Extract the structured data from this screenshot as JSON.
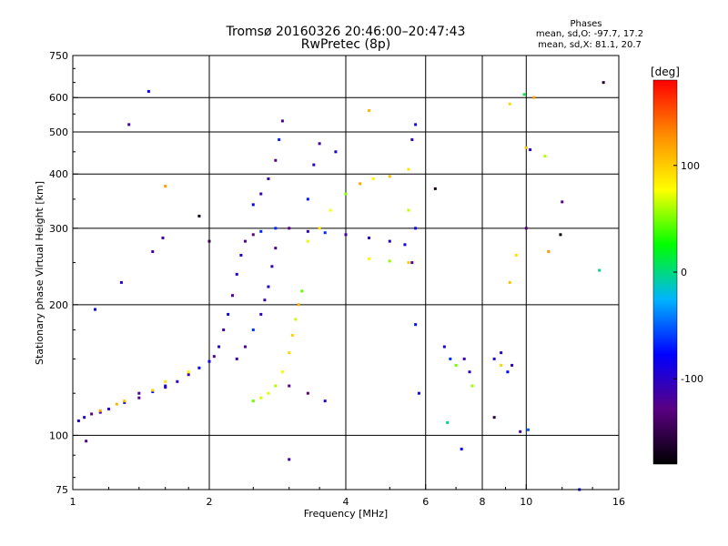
{
  "chart_data": {
    "type": "scatter",
    "title": "Tromsø 20160326 20:46:00–20:47:43",
    "subtitle": "RwPretec (8p)",
    "xlabel": "Frequency [MHz]",
    "ylabel": "Stationary phase Virtual Height [km]",
    "x_scale": "log",
    "y_scale": "log",
    "xlim": [
      1,
      16
    ],
    "ylim": [
      75,
      750
    ],
    "x_ticks": [
      1,
      2,
      4,
      6,
      8,
      10,
      16
    ],
    "y_ticks": [
      75,
      100,
      200,
      300,
      400,
      500,
      600,
      750
    ],
    "x_gridlines": [
      2,
      4,
      6,
      8,
      10
    ],
    "y_gridlines": [
      100,
      200,
      300,
      400,
      500,
      600
    ],
    "grid": true,
    "color_encoding": "phase",
    "colorbar": {
      "label": "[deg]",
      "ticks": [
        100,
        0,
        -100
      ],
      "range": [
        -180,
        180
      ],
      "colors": [
        "#000000",
        "#5a0082",
        "#0000ff",
        "#00b4ff",
        "#00ff00",
        "#ffff00",
        "#ff8c00",
        "#ff0000"
      ]
    },
    "stats": {
      "title": "Phases",
      "o_line": "mean, sd,O: -97.7, 17.2",
      "x_line": "mean, sd,X:  81.1, 20.7"
    },
    "series": [
      {
        "mode": "O",
        "phase_mean": -97.7,
        "points": [
          [
            1.03,
            108
          ],
          [
            1.06,
            110
          ],
          [
            1.1,
            112
          ],
          [
            1.15,
            113
          ],
          [
            1.2,
            115
          ],
          [
            1.3,
            119
          ],
          [
            1.4,
            122
          ],
          [
            1.5,
            126
          ],
          [
            1.6,
            129
          ],
          [
            1.7,
            133
          ],
          [
            1.8,
            138
          ],
          [
            1.9,
            143
          ],
          [
            2.0,
            148
          ],
          [
            2.05,
            152
          ],
          [
            2.1,
            160
          ],
          [
            2.15,
            175
          ],
          [
            2.2,
            190
          ],
          [
            2.25,
            210
          ],
          [
            2.3,
            235
          ],
          [
            2.35,
            260
          ],
          [
            2.4,
            280
          ],
          [
            2.5,
            290
          ],
          [
            2.6,
            295
          ],
          [
            2.8,
            300
          ],
          [
            3.0,
            300
          ],
          [
            3.3,
            295
          ],
          [
            3.6,
            293
          ],
          [
            4.0,
            290
          ],
          [
            4.5,
            285
          ],
          [
            5.0,
            280
          ],
          [
            5.4,
            275
          ],
          [
            2.3,
            150
          ],
          [
            2.4,
            160
          ],
          [
            2.5,
            175
          ],
          [
            2.6,
            190
          ],
          [
            2.65,
            205
          ],
          [
            2.7,
            220
          ],
          [
            2.75,
            245
          ],
          [
            2.8,
            270
          ],
          [
            2.5,
            340
          ],
          [
            2.6,
            360
          ],
          [
            2.7,
            390
          ],
          [
            2.8,
            430
          ],
          [
            2.85,
            480
          ],
          [
            2.9,
            530
          ],
          [
            3.3,
            350
          ],
          [
            3.4,
            420
          ],
          [
            3.5,
            470
          ],
          [
            3.8,
            450
          ],
          [
            5.6,
            480
          ],
          [
            5.7,
            520
          ],
          [
            5.7,
            300
          ],
          [
            5.6,
            250
          ],
          [
            1.4,
            125
          ],
          [
            1.6,
            130
          ],
          [
            3.0,
            130
          ],
          [
            3.3,
            125
          ],
          [
            3.6,
            120
          ],
          [
            5.8,
            125
          ],
          [
            6.6,
            160
          ],
          [
            6.8,
            150
          ],
          [
            7.3,
            150
          ],
          [
            7.5,
            140
          ],
          [
            8.5,
            150
          ],
          [
            8.8,
            155
          ],
          [
            9.1,
            140
          ],
          [
            9.3,
            145
          ],
          [
            1.28,
            225
          ],
          [
            1.58,
            285
          ],
          [
            1.33,
            520
          ],
          [
            1.47,
            620
          ],
          [
            1.07,
            97
          ],
          [
            3.0,
            88
          ],
          [
            1.12,
            195
          ],
          [
            5.7,
            180
          ]
        ]
      },
      {
        "mode": "X",
        "phase_mean": 81.1,
        "points": [
          [
            1.15,
            114
          ],
          [
            1.25,
            118
          ],
          [
            1.3,
            120
          ],
          [
            1.5,
            127
          ],
          [
            1.6,
            133
          ],
          [
            1.8,
            140
          ],
          [
            2.5,
            120
          ],
          [
            2.6,
            122
          ],
          [
            2.7,
            125
          ],
          [
            2.8,
            130
          ],
          [
            2.9,
            140
          ],
          [
            3.0,
            155
          ],
          [
            3.05,
            170
          ],
          [
            3.1,
            185
          ],
          [
            3.15,
            200
          ],
          [
            3.2,
            215
          ],
          [
            3.3,
            280
          ],
          [
            3.5,
            300
          ],
          [
            3.7,
            330
          ],
          [
            4.0,
            360
          ],
          [
            4.3,
            380
          ],
          [
            4.6,
            390
          ],
          [
            5.0,
            395
          ],
          [
            5.5,
            410
          ],
          [
            4.5,
            255
          ],
          [
            5.0,
            252
          ],
          [
            5.5,
            250
          ],
          [
            4.5,
            560
          ],
          [
            5.5,
            330
          ],
          [
            7.0,
            145
          ],
          [
            7.6,
            130
          ],
          [
            8.8,
            145
          ],
          [
            9.2,
            580
          ],
          [
            9.5,
            260
          ],
          [
            10.0,
            460
          ],
          [
            11.0,
            440
          ]
        ]
      },
      {
        "mode": "noise",
        "phase_mean": null,
        "points": [
          [
            1.6,
            375
          ],
          [
            1.5,
            265
          ],
          [
            1.9,
            320
          ],
          [
            2.0,
            280
          ],
          [
            6.3,
            370
          ],
          [
            9.9,
            610
          ],
          [
            10.4,
            600
          ],
          [
            11.2,
            265
          ],
          [
            12.0,
            345
          ],
          [
            14.5,
            240
          ],
          [
            14.8,
            650
          ],
          [
            7.2,
            93
          ],
          [
            6.7,
            107
          ],
          [
            8.5,
            110
          ],
          [
            10.1,
            103
          ],
          [
            10.2,
            455
          ],
          [
            13.1,
            75
          ],
          [
            9.2,
            225
          ],
          [
            10.0,
            300
          ],
          [
            9.7,
            102
          ],
          [
            11.9,
            290
          ]
        ]
      }
    ]
  }
}
